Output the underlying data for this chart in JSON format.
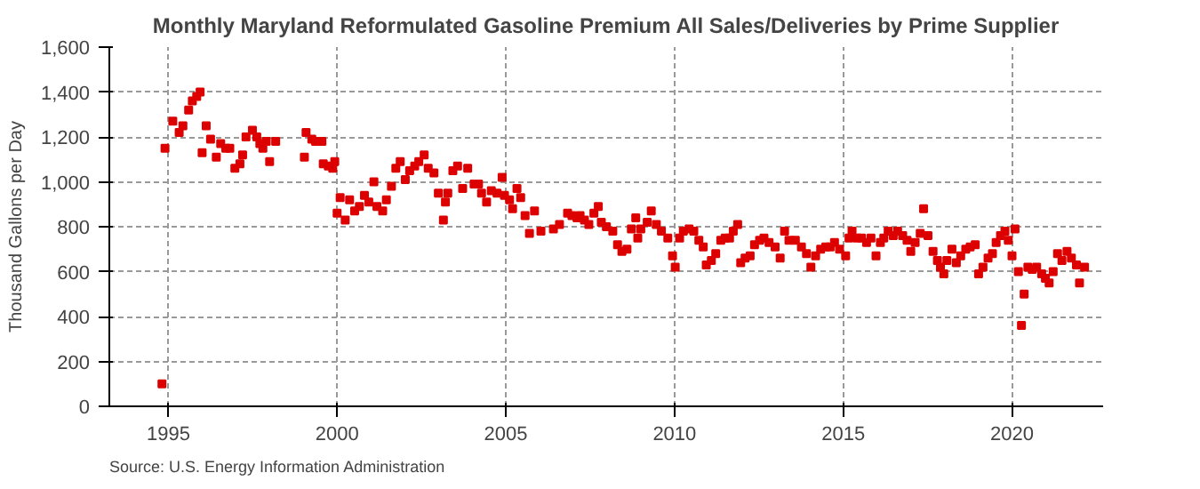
{
  "chart_data": {
    "type": "scatter",
    "title": "Monthly Maryland Reformulated Gasoline Premium All Sales/Deliveries by Prime Supplier",
    "ylabel": "Thousand Gallons per Day",
    "annotations": [
      "Source: U.S. Energy Information Administration"
    ],
    "marker": "square",
    "grid": true,
    "xlim": [
      1993.25,
      2022.7
    ],
    "xticks": [
      1995,
      2000,
      2005,
      2010,
      2015,
      2020
    ],
    "ylim": [
      0,
      1600
    ],
    "yticks": [
      0,
      {
        "value": 200,
        "label": "200"
      },
      {
        "value": 400,
        "label": "400"
      },
      {
        "value": 600,
        "label": "600"
      },
      {
        "value": 800,
        "label": "800"
      },
      {
        "value": 1000,
        "label": "1,000"
      },
      {
        "value": 1200,
        "label": "1,200"
      },
      {
        "value": 1400,
        "label": "1,400"
      },
      {
        "value": 1600,
        "label": "1,600"
      }
    ],
    "series": [
      {
        "color": "#dd0000",
        "x": [
          1994.81,
          1994.9,
          1995.13,
          1995.32,
          1995.43,
          1995.6,
          1995.71,
          1995.84,
          1995.94,
          1996.0,
          1996.12,
          1996.25,
          1996.42,
          1996.55,
          1996.7,
          1996.82,
          1996.97,
          1997.12,
          1997.2,
          1997.3,
          1997.49,
          1997.62,
          1997.71,
          1997.8,
          1997.9,
          1998.0,
          1998.18,
          1999.03,
          1999.08,
          1999.25,
          1999.36,
          1999.55,
          1999.59,
          1999.74,
          1999.87,
          1999.93,
          2000.0,
          2000.09,
          2000.24,
          2000.37,
          2000.52,
          2000.66,
          2000.81,
          2000.94,
          2001.09,
          2001.18,
          2001.35,
          2001.46,
          2001.61,
          2001.74,
          2001.87,
          2002.02,
          2002.15,
          2002.3,
          2002.42,
          2002.58,
          2002.7,
          2002.87,
          2003.0,
          2003.15,
          2003.21,
          2003.28,
          2003.43,
          2003.57,
          2003.72,
          2003.87,
          2004.06,
          2004.19,
          2004.28,
          2004.43,
          2004.57,
          2004.74,
          2004.89,
          2004.96,
          2005.11,
          2005.2,
          2005.33,
          2005.44,
          2005.57,
          2005.7,
          2005.85,
          2006.04,
          2006.41,
          2006.59,
          2006.83,
          2006.96,
          2007.11,
          2007.2,
          2007.33,
          2007.46,
          2007.61,
          2007.74,
          2007.83,
          2007.98,
          2008.17,
          2008.31,
          2008.44,
          2008.59,
          2008.72,
          2008.85,
          2008.91,
          2009.0,
          2009.19,
          2009.31,
          2009.46,
          2009.61,
          2009.8,
          2009.94,
          2010.02,
          2010.15,
          2010.26,
          2010.43,
          2010.57,
          2010.72,
          2010.85,
          2010.94,
          2011.09,
          2011.22,
          2011.37,
          2011.5,
          2011.63,
          2011.74,
          2011.87,
          2011.96,
          2012.09,
          2012.24,
          2012.37,
          2012.52,
          2012.65,
          2012.8,
          2012.98,
          2013.13,
          2013.26,
          2013.39,
          2013.58,
          2013.76,
          2013.91,
          2014.04,
          2014.18,
          2014.33,
          2014.48,
          2014.61,
          2014.74,
          2014.89,
          2015.07,
          2015.17,
          2015.26,
          2015.41,
          2015.54,
          2015.69,
          2015.82,
          2015.97,
          2016.1,
          2016.2,
          2016.33,
          2016.48,
          2016.61,
          2016.76,
          2016.89,
          2017.0,
          2017.13,
          2017.28,
          2017.38,
          2017.51,
          2017.66,
          2017.79,
          2017.88,
          2017.98,
          2018.07,
          2018.22,
          2018.35,
          2018.48,
          2018.63,
          2018.76,
          2018.91,
          2019.01,
          2019.14,
          2019.29,
          2019.42,
          2019.53,
          2019.66,
          2019.79,
          2019.89,
          2020.0,
          2020.09,
          2020.19,
          2020.28,
          2020.36,
          2020.47,
          2020.6,
          2020.73,
          2020.88,
          2020.99,
          2021.1,
          2021.22,
          2021.35,
          2021.48,
          2021.63,
          2021.76,
          2021.91,
          2022.0,
          2022.15
        ],
        "values": [
          100,
          1150,
          1270,
          1220,
          1250,
          1320,
          1360,
          1380,
          1400,
          1130,
          1250,
          1190,
          1110,
          1170,
          1150,
          1150,
          1060,
          1080,
          1120,
          1200,
          1230,
          1200,
          1170,
          1150,
          1180,
          1090,
          1180,
          1110,
          1220,
          1190,
          1180,
          1180,
          1080,
          1070,
          1060,
          1090,
          860,
          930,
          830,
          920,
          870,
          890,
          940,
          910,
          1000,
          890,
          870,
          920,
          980,
          1060,
          1090,
          1010,
          1050,
          1070,
          1090,
          1120,
          1060,
          1040,
          950,
          830,
          910,
          950,
          1050,
          1070,
          970,
          1060,
          990,
          990,
          950,
          910,
          960,
          950,
          1020,
          940,
          920,
          880,
          970,
          930,
          850,
          770,
          870,
          780,
          790,
          810,
          860,
          850,
          840,
          850,
          830,
          810,
          860,
          890,
          820,
          800,
          780,
          720,
          690,
          700,
          790,
          840,
          750,
          790,
          820,
          870,
          810,
          780,
          750,
          670,
          620,
          750,
          780,
          790,
          780,
          740,
          710,
          630,
          650,
          680,
          740,
          750,
          750,
          780,
          810,
          640,
          660,
          670,
          720,
          740,
          750,
          730,
          710,
          660,
          780,
          740,
          740,
          710,
          680,
          620,
          670,
          700,
          710,
          710,
          730,
          700,
          670,
          750,
          780,
          750,
          750,
          730,
          750,
          670,
          730,
          750,
          780,
          760,
          780,
          760,
          740,
          690,
          730,
          770,
          880,
          760,
          690,
          650,
          620,
          590,
          650,
          700,
          640,
          670,
          700,
          710,
          720,
          590,
          620,
          660,
          680,
          730,
          760,
          780,
          740,
          670,
          790,
          600,
          360,
          500,
          620,
          610,
          620,
          590,
          570,
          550,
          600,
          680,
          650,
          690,
          660,
          630,
          550,
          620
        ]
      }
    ]
  }
}
